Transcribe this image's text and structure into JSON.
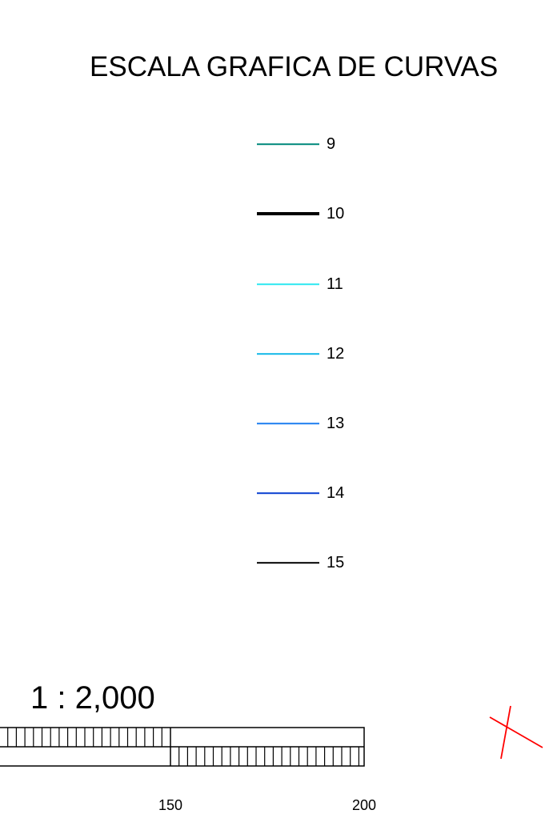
{
  "title": "ESCALA GRAFICA DE CURVAS",
  "legend": [
    {
      "label": "9",
      "color": "#00897B",
      "weight": "thin"
    },
    {
      "label": "10",
      "color": "#000000",
      "weight": "bold"
    },
    {
      "label": "11",
      "color": "#2EE8F0",
      "weight": "thin"
    },
    {
      "label": "12",
      "color": "#12B8E8",
      "weight": "thin"
    },
    {
      "label": "13",
      "color": "#1E7FF0",
      "weight": "thin"
    },
    {
      "label": "14",
      "color": "#0A3FD0",
      "weight": "thin"
    },
    {
      "label": "15",
      "color": "#000000",
      "weight": "thin"
    }
  ],
  "scale": {
    "ratio": "1 : 2,000",
    "ticks": [
      "150",
      "200"
    ]
  },
  "colors": {
    "mark": "#FF0000"
  }
}
